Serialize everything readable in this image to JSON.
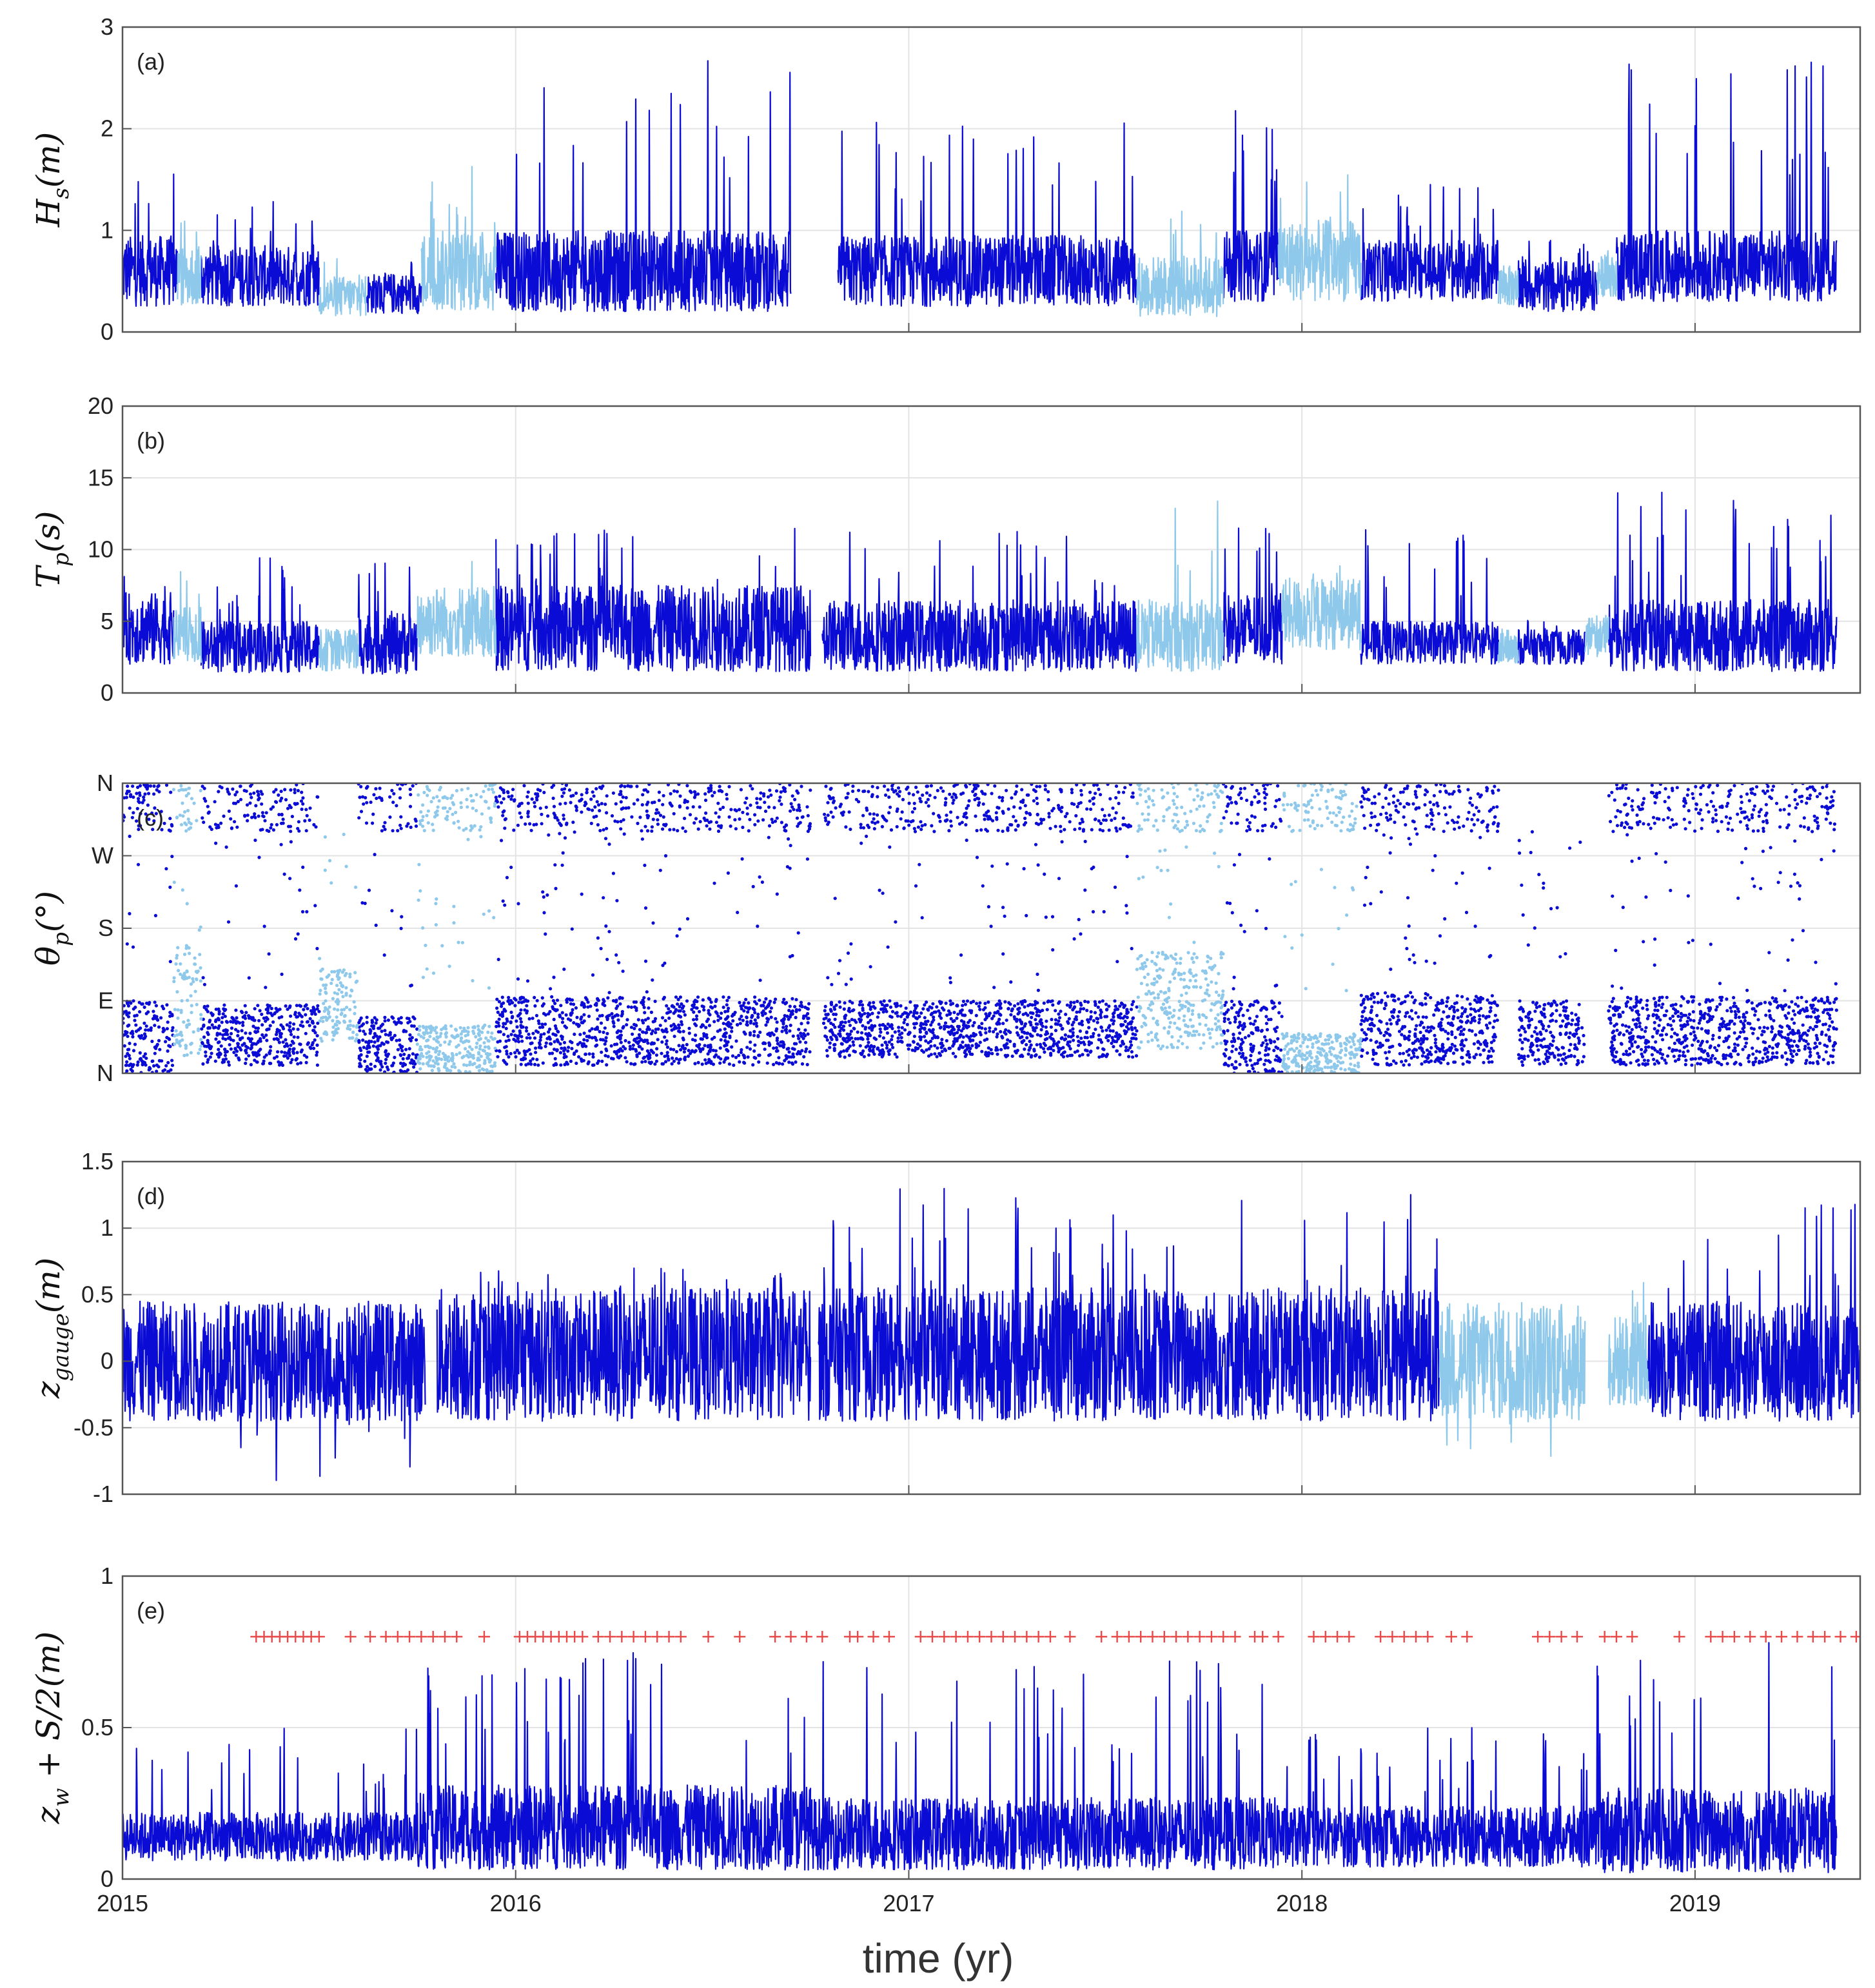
{
  "chart_data": [
    {
      "type": "line",
      "panel_tag": "(a)",
      "ylabel": "Hs(m)",
      "ylabel_main": "H",
      "ylabel_sub": "s",
      "ylabel_rest": "(m)",
      "ylim": [
        0,
        3
      ],
      "yticks": [
        0,
        1,
        2,
        3
      ],
      "yticklabels": [
        "0",
        "1",
        "2",
        "3"
      ],
      "grid": true,
      "series": [
        {
          "color": "#0b0bd6",
          "segments": [
            {
              "x": [
                2015.0,
                2015.07,
                2015.14
              ],
              "base": 0.6,
              "amp": 0.35,
              "spike": 1.8
            },
            {
              "x": [
                2015.2,
                2015.35,
                2015.5
              ],
              "base": 0.55,
              "amp": 0.3,
              "spike": 1.3
            },
            {
              "x": [
                2015.62,
                2015.69,
                2015.76
              ],
              "base": 0.38,
              "amp": 0.2,
              "spike": 0.7
            },
            {
              "x": [
                2015.95,
                2016.2,
                2016.45,
                2016.7
              ],
              "base": 0.6,
              "amp": 0.4,
              "spike": 2.7
            },
            {
              "x": [
                2016.82,
                2017.1,
                2017.3,
                2017.58
              ],
              "base": 0.6,
              "amp": 0.35,
              "spike": 2.1
            },
            {
              "x": [
                2017.8,
                2017.87,
                2017.94
              ],
              "base": 0.65,
              "amp": 0.35,
              "spike": 2.3
            },
            {
              "x": [
                2018.15,
                2018.35,
                2018.5
              ],
              "base": 0.6,
              "amp": 0.3,
              "spike": 1.5
            },
            {
              "x": [
                2018.55,
                2018.65,
                2018.75
              ],
              "base": 0.45,
              "amp": 0.25,
              "spike": 0.9
            },
            {
              "x": [
                2018.8,
                2019.0,
                2019.2,
                2019.36
              ],
              "base": 0.65,
              "amp": 0.35,
              "spike": 2.7
            }
          ]
        },
        {
          "color": "#8ec8ea",
          "segments": [
            {
              "x": [
                2015.14,
                2015.2
              ],
              "base": 0.55,
              "amp": 0.3,
              "spike": 1.1
            },
            {
              "x": [
                2015.5,
                2015.62
              ],
              "base": 0.35,
              "amp": 0.2,
              "spike": 0.8
            },
            {
              "x": [
                2015.76,
                2015.95
              ],
              "base": 0.6,
              "amp": 0.4,
              "spike": 1.75
            },
            {
              "x": [
                2017.58,
                2017.8
              ],
              "base": 0.45,
              "amp": 0.3,
              "spike": 1.2
            },
            {
              "x": [
                2017.94,
                2018.15
              ],
              "base": 0.7,
              "amp": 0.4,
              "spike": 1.7
            },
            {
              "x": [
                2018.5,
                2018.55
              ],
              "base": 0.45,
              "amp": 0.2,
              "spike": 0.7
            },
            {
              "x": [
                2018.75,
                2018.8
              ],
              "base": 0.55,
              "amp": 0.2,
              "spike": 0.8
            }
          ]
        }
      ]
    },
    {
      "type": "line",
      "panel_tag": "(b)",
      "ylabel": "Tp(s)",
      "ylabel_main": "T",
      "ylabel_sub": "p",
      "ylabel_rest": "(s)",
      "ylim": [
        0,
        20
      ],
      "yticks": [
        0,
        5,
        10,
        15,
        20
      ],
      "yticklabels": [
        "0",
        "5",
        "10",
        "15",
        "20"
      ],
      "grid": true,
      "series": [
        {
          "color": "#0b0bd6",
          "segments": [
            {
              "x": [
                2015.0,
                2015.07,
                2015.13
              ],
              "base": 4.5,
              "amp": 2.5,
              "spike": 9.5
            },
            {
              "x": [
                2015.2,
                2015.35,
                2015.5
              ],
              "base": 3.2,
              "amp": 1.8,
              "spike": 9.5
            },
            {
              "x": [
                2015.6,
                2015.7,
                2015.75
              ],
              "base": 3.5,
              "amp": 2.2,
              "spike": 10.0
            },
            {
              "x": [
                2015.95,
                2016.2,
                2016.45,
                2016.75
              ],
              "base": 4.5,
              "amp": 3.0,
              "spike": 11.5
            },
            {
              "x": [
                2016.78,
                2017.1,
                2017.3,
                2017.58
              ],
              "base": 4.0,
              "amp": 2.5,
              "spike": 11.5
            },
            {
              "x": [
                2017.8,
                2017.87,
                2017.95
              ],
              "base": 4.5,
              "amp": 2.5,
              "spike": 11.5
            },
            {
              "x": [
                2018.15,
                2018.35,
                2018.5
              ],
              "base": 3.5,
              "amp": 1.5,
              "spike": 11.5
            },
            {
              "x": [
                2018.55,
                2018.65,
                2018.72
              ],
              "base": 3.2,
              "amp": 1.2,
              "spike": 5.5
            },
            {
              "x": [
                2018.78,
                2019.0,
                2019.2,
                2019.36
              ],
              "base": 4.0,
              "amp": 2.5,
              "spike": 14.0
            }
          ]
        },
        {
          "color": "#8ec8ea",
          "segments": [
            {
              "x": [
                2015.13,
                2015.2
              ],
              "base": 4.0,
              "amp": 2.0,
              "spike": 10.0
            },
            {
              "x": [
                2015.5,
                2015.6
              ],
              "base": 3.0,
              "amp": 1.5,
              "spike": 5.0
            },
            {
              "x": [
                2015.75,
                2015.95
              ],
              "base": 5.0,
              "amp": 2.5,
              "spike": 9.5
            },
            {
              "x": [
                2017.58,
                2017.8
              ],
              "base": 4.0,
              "amp": 2.5,
              "spike": 15.0
            },
            {
              "x": [
                2017.95,
                2018.15
              ],
              "base": 5.5,
              "amp": 2.5,
              "spike": 9.0
            },
            {
              "x": [
                2018.5,
                2018.55
              ],
              "base": 3.2,
              "amp": 1.2,
              "spike": 5.0
            },
            {
              "x": [
                2018.72,
                2018.78
              ],
              "base": 4.0,
              "amp": 1.5,
              "spike": 5.5
            }
          ]
        }
      ]
    },
    {
      "type": "scatter",
      "panel_tag": "(c)",
      "ylabel": "θp(°)",
      "ylabel_main": "θ",
      "ylabel_sub": "p",
      "ylabel_rest": "(°)",
      "ylim": [
        0,
        360
      ],
      "yticks": [
        0,
        90,
        180,
        270,
        360
      ],
      "yticklabels": [
        "N",
        "E",
        "S",
        "W",
        "N"
      ],
      "grid": true,
      "series": [
        {
          "color": "#0b0bd6",
          "segments": [
            {
              "x": [
                2015.0,
                2015.13
              ],
              "low": 0,
              "high": 90,
              "top": true
            },
            {
              "x": [
                2015.2,
                2015.5
              ],
              "low": 10,
              "high": 85,
              "top": true
            },
            {
              "x": [
                2015.6,
                2015.75
              ],
              "low": 0,
              "high": 70,
              "top": true
            },
            {
              "x": [
                2015.95,
                2016.75
              ],
              "low": 10,
              "high": 95,
              "top": true
            },
            {
              "x": [
                2016.78,
                2017.58
              ],
              "low": 20,
              "high": 90,
              "top": true
            },
            {
              "x": [
                2017.8,
                2017.95
              ],
              "low": 0,
              "high": 90,
              "top": true
            },
            {
              "x": [
                2018.15,
                2018.5
              ],
              "low": 10,
              "high": 100,
              "top": true
            },
            {
              "x": [
                2018.55,
                2018.72
              ],
              "low": 10,
              "high": 90,
              "top": false
            },
            {
              "x": [
                2018.78,
                2019.36
              ],
              "low": 10,
              "high": 95,
              "top": true
            }
          ]
        },
        {
          "color": "#8ec8ea",
          "segments": [
            {
              "x": [
                2015.13,
                2015.2
              ],
              "low": 20,
              "high": 160,
              "top": true
            },
            {
              "x": [
                2015.5,
                2015.6
              ],
              "low": 40,
              "high": 130,
              "top": false
            },
            {
              "x": [
                2015.75,
                2015.95
              ],
              "low": 0,
              "high": 60,
              "top": true
            },
            {
              "x": [
                2017.58,
                2017.8
              ],
              "low": 30,
              "high": 150,
              "top": true
            },
            {
              "x": [
                2017.95,
                2018.15
              ],
              "low": 0,
              "high": 50,
              "top": true
            }
          ]
        }
      ]
    },
    {
      "type": "line",
      "panel_tag": "(d)",
      "ylabel": "zgauge(m)",
      "ylabel_main": "z",
      "ylabel_sub": "gauge",
      "ylabel_rest": "(m)",
      "ylim": [
        -1,
        1.5
      ],
      "yticks": [
        -1,
        -0.5,
        0,
        0.5,
        1,
        1.5
      ],
      "yticklabels": [
        "-1",
        "-0.5",
        "0",
        "0.5",
        "1",
        "1.5"
      ],
      "grid": true,
      "series": [
        {
          "color": "#0b0bd6",
          "segments": [
            {
              "x": [
                2015.0,
                2015.3,
                2015.55,
                2015.77
              ],
              "base": 0.0,
              "amp": 0.45,
              "spike": -0.9
            },
            {
              "x": [
                2015.8,
                2016.2,
                2016.5,
                2016.75
              ],
              "base": 0.05,
              "amp": 0.5,
              "spike": 0.7
            },
            {
              "x": [
                2016.77,
                2017.1,
                2017.4,
                2017.7,
                2018.35
              ],
              "base": 0.05,
              "amp": 0.5,
              "spike": 1.3
            },
            {
              "x": [
                2018.88,
                2019.1,
                2019.42
              ],
              "base": 0.0,
              "amp": 0.45,
              "spike": 1.2
            }
          ]
        },
        {
          "color": "#8ec8ea",
          "segments": [
            {
              "x": [
                2018.35,
                2018.55,
                2018.72
              ],
              "base": 0.0,
              "amp": 0.45,
              "spike": -0.8
            },
            {
              "x": [
                2018.78,
                2018.88
              ],
              "base": 0.0,
              "amp": 0.35,
              "spike": 0.6
            }
          ]
        }
      ]
    },
    {
      "type": "line",
      "panel_tag": "(e)",
      "ylabel": "zw + S/2(m)",
      "ylabel_main": "z",
      "ylabel_sub": "w",
      "ylabel_rest": " + S/2(m)",
      "ylim": [
        0,
        1
      ],
      "yticks": [
        0,
        0.5,
        1
      ],
      "yticklabels": [
        "0",
        "0.5",
        "1"
      ],
      "grid": true,
      "markers": {
        "color": "#e84a4a",
        "y": 0.8,
        "x": [
          2015.34,
          2015.36,
          2015.38,
          2015.4,
          2015.42,
          2015.44,
          2015.46,
          2015.48,
          2015.5,
          2015.58,
          2015.63,
          2015.67,
          2015.7,
          2015.73,
          2015.76,
          2015.79,
          2015.82,
          2015.85,
          2015.92,
          2016.01,
          2016.03,
          2016.05,
          2016.07,
          2016.09,
          2016.11,
          2016.13,
          2016.15,
          2016.17,
          2016.21,
          2016.24,
          2016.27,
          2016.3,
          2016.33,
          2016.36,
          2016.39,
          2016.42,
          2016.49,
          2016.57,
          2016.66,
          2016.7,
          2016.74,
          2016.78,
          2016.85,
          2016.87,
          2016.91,
          2016.95,
          2017.03,
          2017.06,
          2017.09,
          2017.12,
          2017.15,
          2017.18,
          2017.21,
          2017.24,
          2017.27,
          2017.3,
          2017.33,
          2017.36,
          2017.41,
          2017.49,
          2017.53,
          2017.56,
          2017.59,
          2017.62,
          2017.65,
          2017.68,
          2017.71,
          2017.74,
          2017.77,
          2017.8,
          2017.83,
          2017.88,
          2017.9,
          2017.94,
          2018.03,
          2018.06,
          2018.09,
          2018.12,
          2018.2,
          2018.23,
          2018.26,
          2018.29,
          2018.32,
          2018.38,
          2018.42,
          2018.6,
          2018.63,
          2018.66,
          2018.7,
          2018.77,
          2018.8,
          2018.84,
          2018.96,
          2019.04,
          2019.07,
          2019.1,
          2019.14,
          2019.18,
          2019.22,
          2019.26,
          2019.3,
          2019.33,
          2019.37,
          2019.41
        ]
      },
      "series": [
        {
          "color": "#0b0bd6",
          "segments": [
            {
              "x": [
                2015.0,
                2015.3,
                2015.6,
                2015.75
              ],
              "base": 0.14,
              "amp": 0.08,
              "spike": 0.5
            },
            {
              "x": [
                2015.75,
                2016.0,
                2016.3,
                2016.75
              ],
              "base": 0.17,
              "amp": 0.14,
              "spike": 0.76
            },
            {
              "x": [
                2016.75,
                2017.1,
                2017.5,
                2017.95
              ],
              "base": 0.15,
              "amp": 0.12,
              "spike": 0.72
            },
            {
              "x": [
                2017.95,
                2018.4,
                2018.75
              ],
              "base": 0.14,
              "amp": 0.1,
              "spike": 0.5
            },
            {
              "x": [
                2018.75,
                2018.95,
                2019.2,
                2019.36
              ],
              "base": 0.16,
              "amp": 0.14,
              "spike": 0.83
            }
          ]
        }
      ]
    }
  ],
  "xaxis": {
    "xlim": [
      2015.0,
      2019.42
    ],
    "xticks": [
      2015,
      2016,
      2017,
      2018,
      2019
    ],
    "xticklabels": [
      "2015",
      "2016",
      "2017",
      "2018",
      "2019"
    ],
    "xlabel": "time (yr)"
  }
}
